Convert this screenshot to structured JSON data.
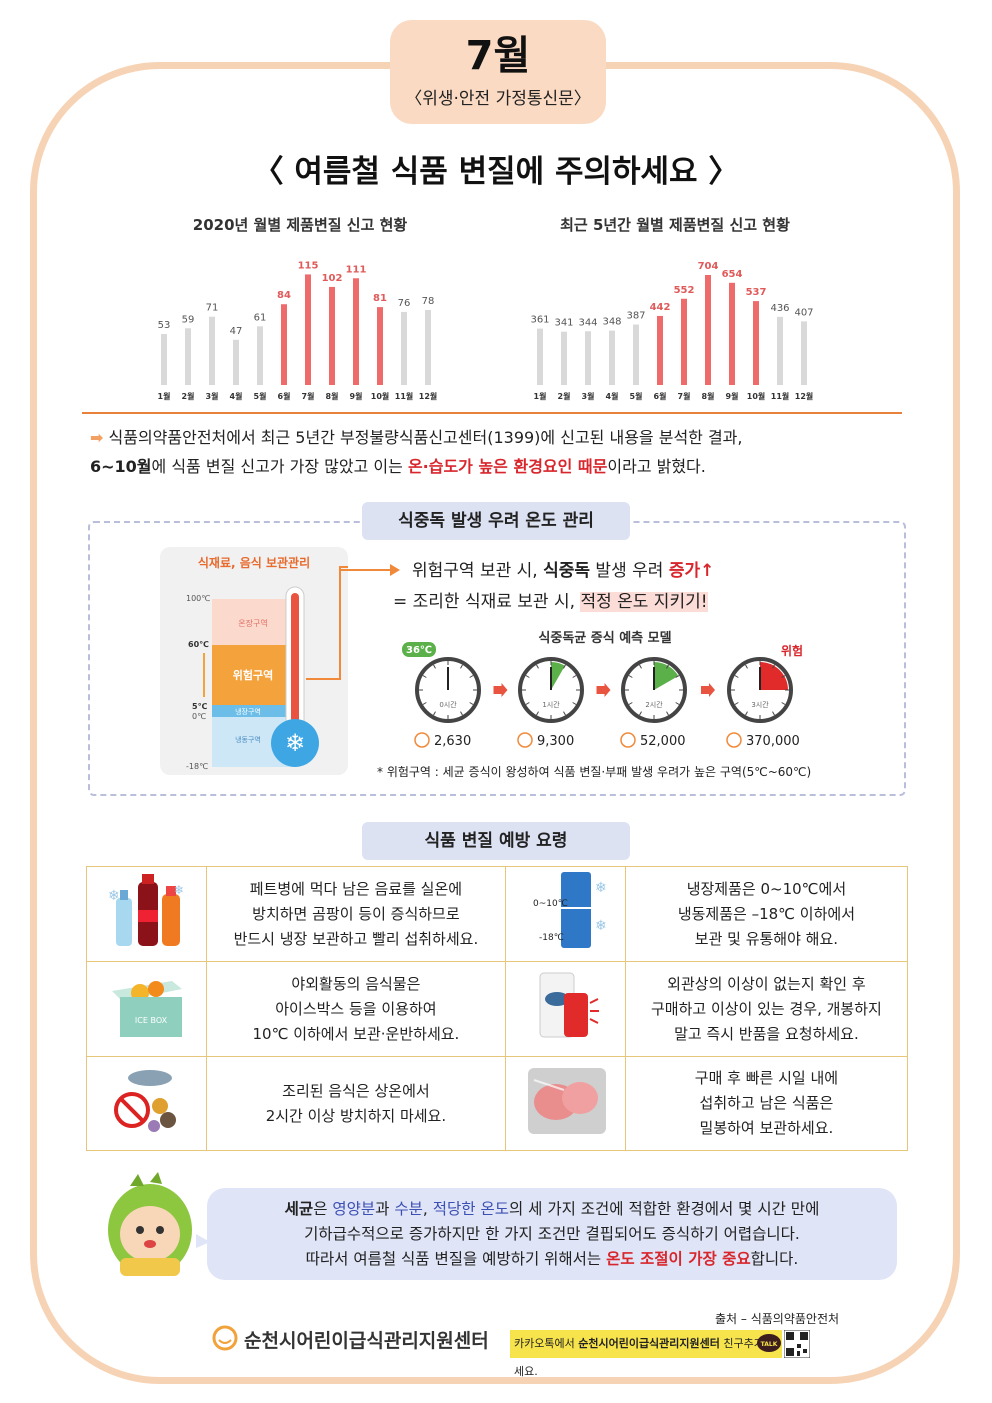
{
  "header": {
    "month": "7월",
    "subtitle": "〈위생·안전 가정통신문〉"
  },
  "headline": "〈 여름철 식품 변질에 주의하세요 〉",
  "colors": {
    "highlight": "#ef6a6a",
    "normal": "#d9d9d9",
    "accent": "#e8823a",
    "frame": "#f7d3b5"
  },
  "chart_data": [
    {
      "type": "bar",
      "title": "2020년 월별 제품변질 신고 현황",
      "categories": [
        "1월",
        "2월",
        "3월",
        "4월",
        "5월",
        "6월",
        "7월",
        "8월",
        "9월",
        "10월",
        "11월",
        "12월"
      ],
      "values": [
        53,
        59,
        71,
        47,
        61,
        84,
        115,
        102,
        111,
        81,
        76,
        78
      ],
      "highlighted": [
        false,
        false,
        false,
        false,
        false,
        true,
        true,
        true,
        true,
        true,
        false,
        false
      ],
      "ylim": [
        0,
        130
      ]
    },
    {
      "type": "bar",
      "title": "최근 5년간 월별 제품변질 신고 현황",
      "categories": [
        "1월",
        "2월",
        "3월",
        "4월",
        "5월",
        "6월",
        "7월",
        "8월",
        "9월",
        "10월",
        "11월",
        "12월"
      ],
      "values": [
        361,
        341,
        344,
        348,
        387,
        442,
        552,
        704,
        654,
        537,
        436,
        407
      ],
      "highlighted": [
        false,
        false,
        false,
        false,
        false,
        true,
        true,
        true,
        true,
        true,
        false,
        false
      ],
      "ylim": [
        0,
        800
      ]
    }
  ],
  "summary": {
    "p1": "식품의약품안전처에서 최근 5년간 부정불량식품신고센터(1399)에 신고된 내용을 분석한 결과,",
    "p2a": "6~10월",
    "p2b": "에 식품 변질 신고가 가장 많았고 이는 ",
    "p2c": "온·습도가 높은 환경요인 때문",
    "p2d": "이라고 밝혔다."
  },
  "temp_section": {
    "title": "식중독 발생 우려 온도 관리",
    "card_title": "식재료, 음식 보관관리",
    "scale": [
      "100℃",
      "60℃",
      "5℃",
      "0℃",
      "-18℃"
    ],
    "zones": [
      "온장구역",
      "위험구역",
      "냉장구역",
      "냉동구역"
    ],
    "line1a": "위험구역 보관 시, ",
    "line1b": "식중독",
    "line1c": " 발생 우려 ",
    "line1d": "증가↑",
    "line2a": "= 조리한 식재료 보관 시, ",
    "line2b": "적정 온도 지키기!",
    "model_title": "식중독균 증식 예측 모델",
    "temp_badge": "36℃",
    "danger_label": "위험",
    "clocks": [
      {
        "label": "0시간",
        "count": "2,630",
        "fraction": 0
      },
      {
        "label": "1시간",
        "count": "9,300",
        "fraction": 0.083
      },
      {
        "label": "2시간",
        "count": "52,000",
        "fraction": 0.167
      },
      {
        "label": "3시간",
        "count": "370,000",
        "fraction": 0.25
      }
    ],
    "note": "* 위험구역 : 세균 증식이 왕성하여 식품 변질·부패 발생 우려가 높은 구역(5℃~60℃)"
  },
  "tips": {
    "title": "식품 변질 예방 요령",
    "fridge_labels": [
      "0~10℃",
      "-18℃"
    ],
    "icebox_label": "ICE BOX",
    "rows": [
      {
        "left": [
          "페트병에 먹다 남은 음료를 실온에",
          "방치하면 곰팡이 등이 증식하므로",
          "반드시 냉장 보관하고 빨리 섭취하세요."
        ],
        "right": [
          "냉장제품은 0~10℃에서",
          "냉동제품은 –18℃ 이하에서",
          "보관 및 유통해야 해요."
        ]
      },
      {
        "left": [
          "야외활동의 음식물은",
          "아이스박스 등을 이용하여",
          "10℃ 이하에서 보관·운반하세요."
        ],
        "right": [
          "외관상의 이상이 없는지 확인 후",
          "구매하고 이상이 있는 경우, 개봉하지",
          "말고 즉시 반품을 요청하세요."
        ]
      },
      {
        "left": [
          "조리된 음식은 상온에서",
          "2시간 이상 방치하지 마세요."
        ],
        "right": [
          "구매 후 빠른 시일 내에",
          "섭취하고 남은 식품은",
          "밀봉하여 보관하세요."
        ]
      }
    ]
  },
  "bubble": {
    "a": "세균",
    "b": "은 ",
    "c": "영양분",
    "d": "과 ",
    "e": "수분",
    "f": ", ",
    "g": "적당한 온도",
    "h": "의 세 가지 조건에 적합한 환경에서 몇 시간 만에",
    "line2": "기하급수적으로 증가하지만 한 가지 조건만 결핍되어도 증식하기 어렵습니다.",
    "line3a": "따라서 여름철 식품 변질을 예방하기 위해서는 ",
    "line3b": "온도 조절이 가장 중요",
    "line3c": "합니다."
  },
  "footer": {
    "source": "출처 – 식품의약품안전처",
    "org": "순천시어린이급식관리지원센터",
    "kakao_a": "카카오톡에서 ",
    "kakao_b": "순천시어린이급식관리지원센터",
    "kakao_c": " 친구추가 하세요.",
    "talk": "TALK"
  }
}
